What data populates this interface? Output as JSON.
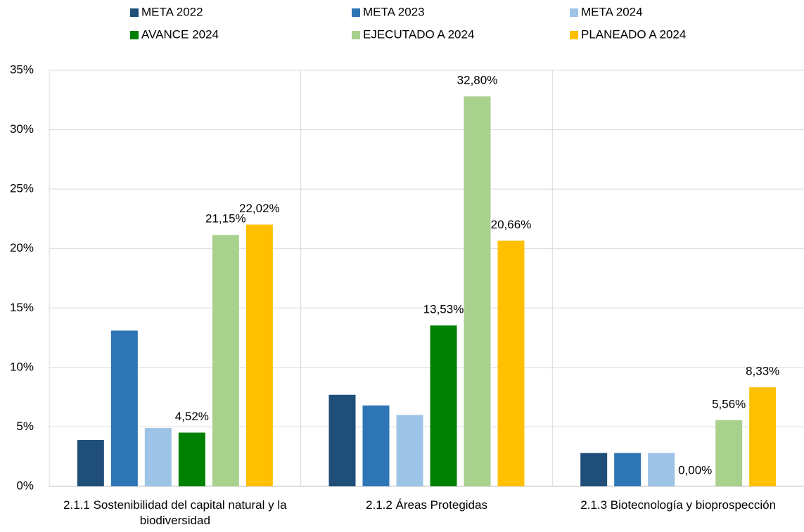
{
  "chart_data": {
    "type": "bar",
    "categories": [
      "2.1.1 Sostenibilidad del capital natural y la biodiversidad",
      "2.1.2 Áreas Protegidas",
      "2.1.3 Biotecnología y bioprospección"
    ],
    "series": [
      {
        "name": "META  2022",
        "color": "#1f4e79",
        "values": [
          3.9,
          7.7,
          2.8
        ]
      },
      {
        "name": "META 2023",
        "color": "#2e75b6",
        "values": [
          13.1,
          6.8,
          2.8
        ]
      },
      {
        "name": "META 2024",
        "color": "#9dc3e6",
        "values": [
          4.9,
          6.0,
          2.8
        ]
      },
      {
        "name": "AVANCE 2024",
        "color": "#008000",
        "values": [
          4.52,
          13.53,
          0
        ],
        "value_labels": [
          "4,52%",
          "13,53%",
          "0,00%"
        ]
      },
      {
        "name": "EJECUTADO A 2024",
        "color": "#a9d18e",
        "values": [
          21.15,
          32.8,
          5.56
        ],
        "value_labels": [
          "21,15%",
          "32,80%",
          "5,56%"
        ]
      },
      {
        "name": "PLANEADO A 2024",
        "color": "#ffc000",
        "values": [
          22.02,
          20.66,
          8.33
        ],
        "value_labels": [
          "22,02%",
          "20,66%",
          "8,33%"
        ]
      }
    ],
    "ylim": [
      0,
      35
    ],
    "yticks": [
      {
        "value": 0,
        "label": "0%"
      },
      {
        "value": 5,
        "label": "5%"
      },
      {
        "value": 10,
        "label": "10%"
      },
      {
        "value": 15,
        "label": "15%"
      },
      {
        "value": 20,
        "label": "20%"
      },
      {
        "value": 25,
        "label": "25%"
      },
      {
        "value": 30,
        "label": "30%"
      },
      {
        "value": 35,
        "label": "35%"
      }
    ],
    "grid": true,
    "legend": "top"
  }
}
